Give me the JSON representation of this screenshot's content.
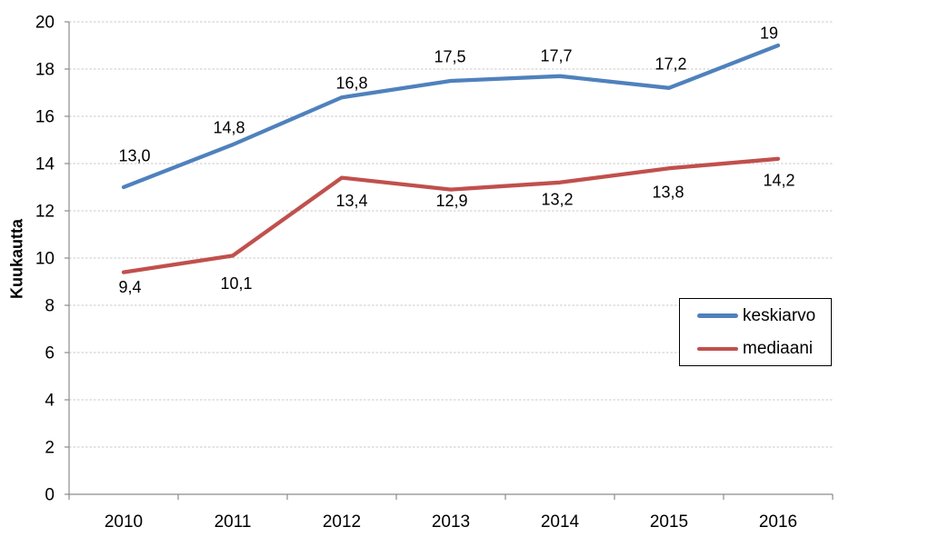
{
  "chart_data": {
    "type": "line",
    "categories": [
      "2010",
      "2011",
      "2012",
      "2013",
      "2014",
      "2015",
      "2016"
    ],
    "series": [
      {
        "name": "keskiarvo",
        "color": "#4F81BD",
        "values": [
          13.0,
          14.8,
          16.8,
          17.5,
          17.7,
          17.2,
          19.0
        ],
        "labels": [
          "13,0",
          "14,8",
          "16,8",
          "17,5",
          "17,7",
          "17,2",
          "19"
        ],
        "label_position": "above"
      },
      {
        "name": "mediaani",
        "color": "#C0504D",
        "values": [
          9.4,
          10.1,
          13.4,
          12.9,
          13.2,
          13.8,
          14.2
        ],
        "labels": [
          "9,4",
          "10,1",
          "13,4",
          "12,9",
          "13,2",
          "13,8",
          "14,2"
        ],
        "label_position": "below"
      }
    ],
    "xlabel": "",
    "ylabel": "Kuukautta",
    "ylim": [
      0,
      20
    ],
    "ytick_step": 2,
    "yticks": [
      "0",
      "2",
      "4",
      "6",
      "8",
      "10",
      "12",
      "14",
      "16",
      "18",
      "20"
    ],
    "grid": true,
    "legend_position": "middle-right"
  },
  "colors": {
    "grid": "#C9C9C9",
    "axis": "#8C8C8C",
    "text": "#000000",
    "background": "#FFFFFF",
    "legend_border": "#000000"
  }
}
